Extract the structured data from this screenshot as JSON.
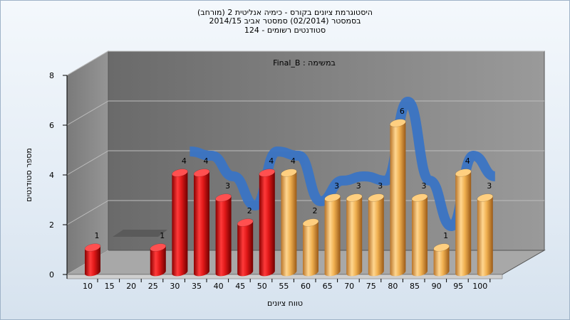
{
  "header": {
    "line1": "היסטוגרמת ציונים בקורס - כימיה אנליטית 2 (מורחב)",
    "line2": "בסמסטר  (02/2014)  סמסטר אביב 2014/15",
    "line3": "סטודנטים רשומים - 124"
  },
  "colors": {
    "red_bars": "#e01818",
    "orange_bars": "#f0b050",
    "curve": "#3a74c4",
    "back_wall": "#7d7d7d",
    "floor": "#a0a0a0"
  },
  "chart_data": {
    "type": "bar",
    "title": "במשימה : Final_B",
    "xlabel": "טווח ציונים",
    "ylabel": "מספר סטודנטים",
    "ylim": [
      0,
      8
    ],
    "yticks": [
      0,
      2,
      4,
      6,
      8
    ],
    "categories": [
      "10",
      "15",
      "20",
      "25",
      "30",
      "35",
      "40",
      "45",
      "50",
      "55",
      "60",
      "65",
      "70",
      "75",
      "80",
      "85",
      "90",
      "95",
      "100"
    ],
    "values": [
      1,
      null,
      null,
      1,
      4,
      4,
      3,
      2,
      4,
      4,
      2,
      3,
      3,
      3,
      6,
      3,
      1,
      4,
      3
    ],
    "series_colors": [
      "red",
      "red",
      "red",
      "red",
      "red",
      "red",
      "red",
      "red",
      "red",
      "orange",
      "orange",
      "orange",
      "orange",
      "orange",
      "orange",
      "orange",
      "orange",
      "orange",
      "orange"
    ],
    "curve": {
      "type": "line",
      "shape": "smoothed distribution curve"
    },
    "grid": true,
    "legend": "none"
  }
}
